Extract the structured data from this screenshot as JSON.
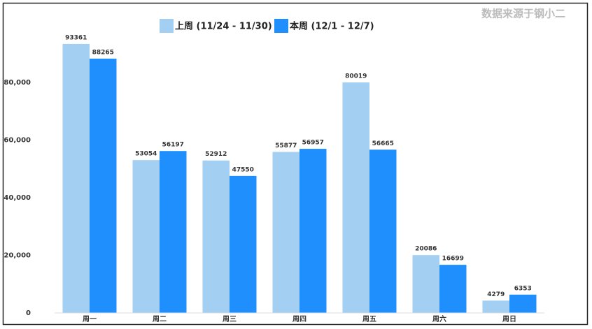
{
  "chart_data": {
    "type": "bar",
    "source": "数据来源于钢小二",
    "categories": [
      "周一",
      "周二",
      "周三",
      "周四",
      "周五",
      "周六",
      "周日"
    ],
    "series": [
      {
        "name": "上周 (11/24 - 11/30)",
        "color": "#a3cff3",
        "values": [
          93361,
          53054,
          52912,
          55877,
          80019,
          20086,
          4279
        ]
      },
      {
        "name": "本周 (12/1 - 12/7)",
        "color": "#1f8ffe",
        "values": [
          88265,
          56197,
          47550,
          56957,
          56665,
          16699,
          6353
        ]
      }
    ],
    "ylim": [
      0,
      100000
    ],
    "yticks": [
      0,
      {
        "value": 20000,
        "label": "20,000"
      },
      {
        "value": 40000,
        "label": "40,000"
      },
      {
        "value": 60000,
        "label": "60,000"
      },
      {
        "value": 80000,
        "label": "80,000"
      }
    ],
    "grid": false
  }
}
